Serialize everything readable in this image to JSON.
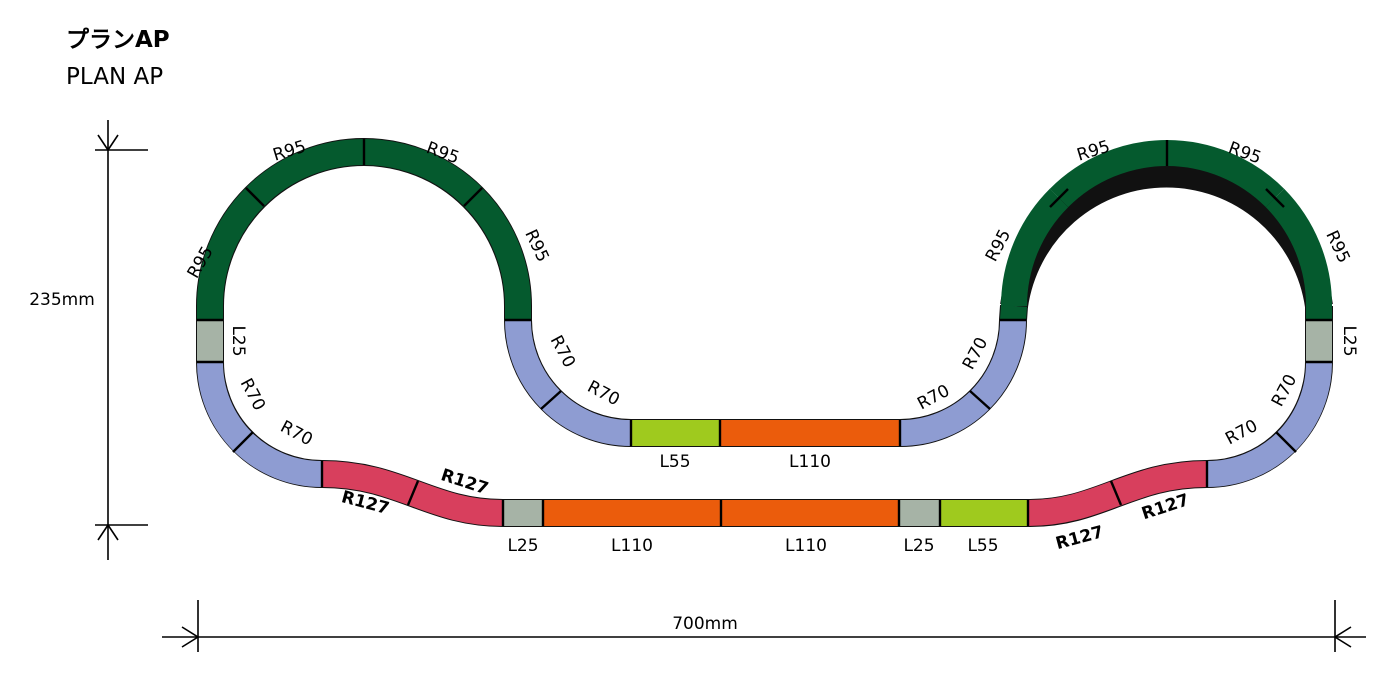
{
  "title": {
    "jp": "プランAP",
    "en": "PLAN AP"
  },
  "dimensions": {
    "height": "235mm",
    "width": "700mm"
  },
  "colors": {
    "R95": "#055a2e",
    "R70": "#8e9cd2",
    "R127": "#d83f5d",
    "L110": "#eb5c0c",
    "L55": "#9fca1e",
    "L25": "#a6b3a6",
    "outline": "#111111"
  },
  "labels": {
    "left_loop": [
      "R95",
      "R95",
      "R95",
      "R95"
    ],
    "left_l25": "L25",
    "left_r70": [
      "R70",
      "R70"
    ],
    "center_r70_left": [
      "R70",
      "R70"
    ],
    "center_r70_right": [
      "R70",
      "R70"
    ],
    "center_l55": "L55",
    "center_l110": "L110",
    "right_loop": [
      "R95",
      "R95",
      "R95",
      "R95"
    ],
    "right_l25": "L25",
    "right_r70": [
      "R70",
      "R70"
    ],
    "bottom_r127_left": [
      "R127",
      "R127"
    ],
    "bottom_r127_right": [
      "R127",
      "R127"
    ],
    "bottom_l25_a": "L25",
    "bottom_l110_a": "L110",
    "bottom_l110_b": "L110",
    "bottom_l25_b": "L25",
    "bottom_l55": "L55"
  }
}
